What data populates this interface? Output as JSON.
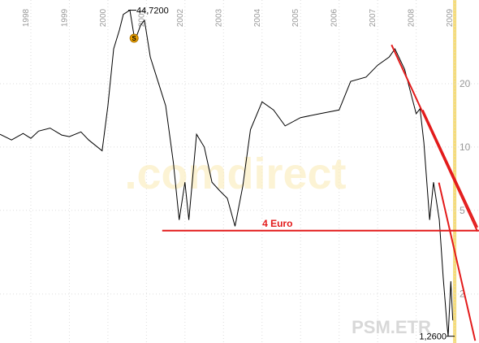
{
  "chart_data": {
    "type": "line",
    "y_scale": "log",
    "grid": true,
    "xlim": [
      1997.2,
      2009.63
    ],
    "ylim": [
      1.17,
      50
    ],
    "xticks": [
      1998,
      1999,
      2000,
      2001,
      2002,
      2003,
      2004,
      2005,
      2006,
      2007,
      2008,
      2009
    ],
    "yticks": [
      2,
      5,
      10,
      20
    ],
    "highlight_x": 2009,
    "highlight_color": "#f5dc7a",
    "series": [
      {
        "name": "PSM.ETR",
        "color": "#000000",
        "x": [
          1997.2,
          1997.5,
          1997.8,
          1998.0,
          1998.2,
          1998.5,
          1998.8,
          1999.0,
          1999.3,
          1999.5,
          1999.85,
          2000.0,
          2000.15,
          2000.3,
          2000.4,
          2000.57,
          2000.7,
          2000.85,
          2000.95,
          2001.1,
          2001.3,
          2001.5,
          2001.7,
          2001.85,
          2002.0,
          2002.1,
          2002.3,
          2002.5,
          2002.7,
          2002.9,
          2003.1,
          2003.3,
          2003.5,
          2003.7,
          2004.0,
          2004.3,
          2004.6,
          2005.0,
          2005.5,
          2006.0,
          2006.3,
          2006.7,
          2007.0,
          2007.3,
          2007.45,
          2007.7,
          2008.0,
          2008.1,
          2008.2,
          2008.35,
          2008.45,
          2008.6,
          2008.7,
          2008.8,
          2008.83,
          2008.9,
          2008.95
        ],
        "values": [
          11.5,
          10.8,
          11.6,
          11.0,
          11.9,
          12.3,
          11.4,
          11.2,
          11.8,
          10.8,
          9.6,
          15.7,
          29.3,
          36.0,
          42.7,
          44.72,
          32.0,
          38.0,
          40.0,
          26.8,
          20.5,
          15.7,
          8.4,
          4.5,
          6.8,
          4.5,
          11.5,
          10.0,
          6.8,
          6.2,
          5.7,
          4.2,
          6.5,
          12.1,
          16.4,
          15.0,
          12.6,
          13.8,
          14.4,
          15.0,
          20.5,
          21.5,
          24.5,
          26.8,
          29.3,
          23.4,
          14.4,
          15.2,
          10.5,
          4.5,
          6.8,
          4.5,
          2.4,
          1.43,
          1.26,
          2.3,
          1.5
        ]
      }
    ],
    "trend_lines": [
      {
        "color": "#e31b1b",
        "x": [
          2001.41,
          2009.63
        ],
        "values": [
          4,
          4
        ]
      },
      {
        "color": "#e31b1b",
        "x": [
          2007.36,
          2009.59
        ],
        "values": [
          30.6,
          3.97
        ]
      },
      {
        "color": "#e31b1b",
        "x": [
          2008.17,
          2009.59
        ],
        "values": [
          15.0,
          4.15
        ]
      },
      {
        "color": "#e31b1b",
        "x": [
          2008.59,
          2009.53
        ],
        "values": [
          6.77,
          1.2
        ]
      }
    ],
    "annotations": [
      {
        "text": "44,7200",
        "x": 2000.57,
        "y": 44.72
      },
      {
        "text": "1,2600",
        "x": 2008.83,
        "y": 1.26
      }
    ],
    "level_label": {
      "text": "4 Euro",
      "x": 2004.4,
      "y": 4
    },
    "split_marker": {
      "label": "S",
      "x": 2000.68,
      "y": 32.9
    },
    "watermark": ".comdirect",
    "symbol": "PSM.ETR"
  }
}
